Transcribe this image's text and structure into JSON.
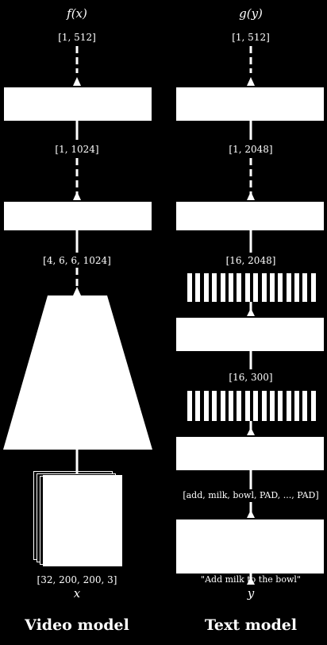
{
  "video": {
    "func_label": "f(x)",
    "out_shape": "[1, 512]",
    "mid_shape": "[1, 1024]",
    "encoder_shape": "[4, 6, 6, 1024]",
    "input_shape": "[32, 200, 200, 3]",
    "input_var": "x",
    "title": "Video model"
  },
  "text": {
    "func_label": "g(y)",
    "out_shape": "[1, 512]",
    "mid_shape": "[1, 2048]",
    "conv_shape": "[16, 2048]",
    "embed_shape": "[16, 300]",
    "tokens": "[add, milk, bowl, PAD, ..., PAD]",
    "sentence": "\"Add milk to the bowl\"",
    "input_var": "y",
    "title": "Text model"
  }
}
